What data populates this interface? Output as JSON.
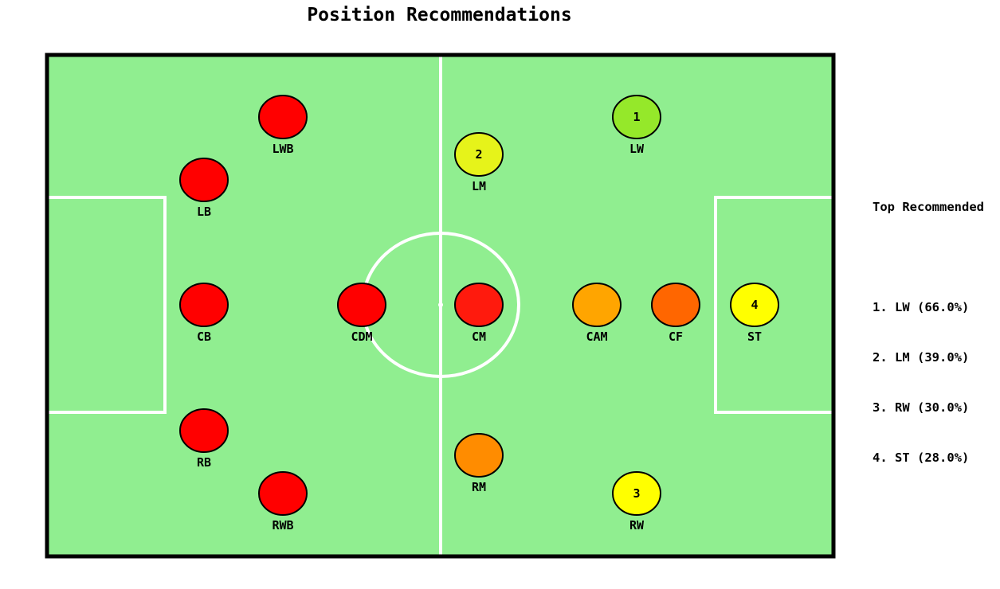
{
  "title": "Position Recommendations",
  "colors": {
    "pitch": "#90ee90",
    "lines": "#ffffff",
    "border": "#000000"
  },
  "sidebar": {
    "heading": "Top Recommended",
    "items": [
      "1. LW (66.0%)",
      "2. LM (39.0%)",
      "3. RW (30.0%)",
      "4. ST (28.0%)"
    ]
  },
  "positions": [
    {
      "label": "LWB",
      "color": "#ff0000",
      "rank": ""
    },
    {
      "label": "LB",
      "color": "#ff0000",
      "rank": ""
    },
    {
      "label": "CB",
      "color": "#ff0000",
      "rank": ""
    },
    {
      "label": "RB",
      "color": "#ff0000",
      "rank": ""
    },
    {
      "label": "RWB",
      "color": "#ff0000",
      "rank": ""
    },
    {
      "label": "CDM",
      "color": "#ff0000",
      "rank": ""
    },
    {
      "label": "LM",
      "color": "#e6f31a",
      "rank": "2"
    },
    {
      "label": "CM",
      "color": "#ff1a0d",
      "rank": ""
    },
    {
      "label": "RM",
      "color": "#ff8c00",
      "rank": ""
    },
    {
      "label": "LW",
      "color": "#95e82a",
      "rank": "1"
    },
    {
      "label": "CAM",
      "color": "#ffa500",
      "rank": ""
    },
    {
      "label": "RW",
      "color": "#ffff00",
      "rank": "3"
    },
    {
      "label": "CF",
      "color": "#ff6600",
      "rank": ""
    },
    {
      "label": "ST",
      "color": "#ffff00",
      "rank": "4"
    }
  ]
}
